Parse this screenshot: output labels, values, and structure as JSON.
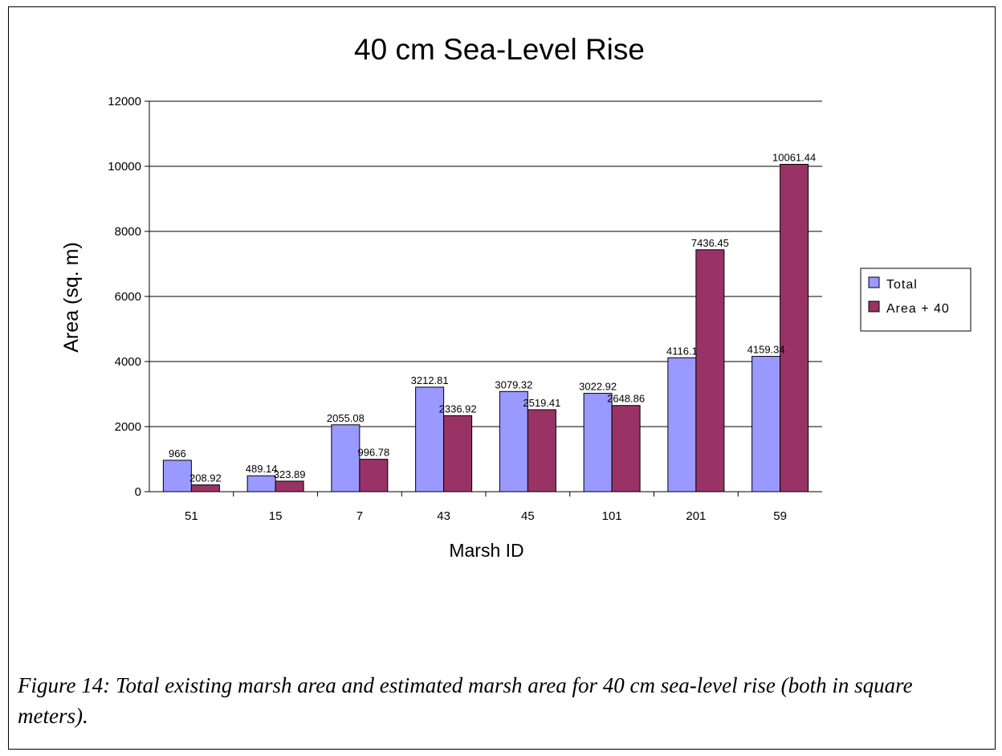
{
  "chart_data": {
    "type": "bar",
    "title": "40 cm Sea-Level Rise",
    "xlabel": "Marsh ID",
    "ylabel": "Area (sq. m)",
    "categories": [
      "51",
      "15",
      "7",
      "43",
      "45",
      "101",
      "201",
      "59"
    ],
    "series": [
      {
        "name": "Total",
        "color": "#9999ff",
        "values": [
          966,
          489.14,
          2055.08,
          3212.81,
          3079.32,
          3022.92,
          4116.1,
          4159.34
        ],
        "labels": [
          "966",
          "489.14",
          "2055.08",
          "3212.81",
          "3079.32",
          "3022.92",
          "4116.1",
          "4159.34"
        ]
      },
      {
        "name": "Area + 40",
        "color": "#993366",
        "values": [
          208.92,
          323.89,
          996.78,
          2336.92,
          2519.41,
          2648.86,
          7436.45,
          10061.44
        ],
        "labels": [
          "208.92",
          "323.89",
          "996.78",
          "2336.92",
          "2519.41",
          "2648.86",
          "7436.45",
          "10061.44"
        ]
      }
    ],
    "ylim": [
      0,
      12000
    ],
    "yticks": [
      "0",
      "2000",
      "4000",
      "6000",
      "8000",
      "10000",
      "12000"
    ],
    "grid": true,
    "legend_position": "right"
  },
  "caption": "Figure 14: Total existing marsh area and estimated marsh area for 40 cm sea-level rise (both in square meters)."
}
